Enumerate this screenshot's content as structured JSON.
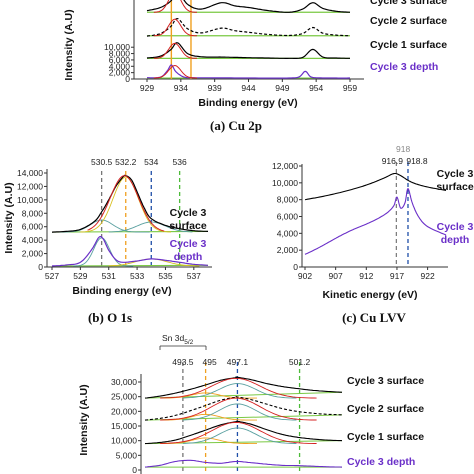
{
  "colors": {
    "surface_line": "#000000",
    "depth_line": "#6a2fc8",
    "fit_red": "#d42020",
    "bg_green": "#7ac943",
    "peak_orange": "#f0a020",
    "peak_blue": "#1f4fa8",
    "peak_green": "#4dbb3a",
    "peak_grey": "#777777",
    "comp_teal": "#5aa0a0",
    "comp_yellow": "#d8c020"
  },
  "chart_data": [
    {
      "panel": "a",
      "type": "line",
      "caption": "(a) Cu 2p",
      "xlabel": "Binding energy (eV)",
      "ylabel": "Intensity (A.U)",
      "xlim": [
        929,
        959
      ],
      "x_ticks": [
        "929",
        "934",
        "939",
        "944",
        "949",
        "954",
        "959"
      ],
      "y_ticks": [
        "0",
        "2,000",
        "4,000",
        "6,000",
        "8,000",
        "10,000"
      ],
      "series": [
        {
          "name": "Cycle 3 surface",
          "x": [
            929,
            931,
            932.5,
            933.5,
            935,
            937,
            940,
            942,
            944,
            947,
            950,
            952,
            953.5,
            955,
            957,
            959
          ],
          "y": [
            21500,
            22500,
            24500,
            27500,
            23500,
            22000,
            24000,
            23000,
            22500,
            21500,
            21000,
            22000,
            24000,
            22200,
            21300,
            21000
          ]
        },
        {
          "name": "Cycle 2 surface",
          "x": [
            929,
            931,
            932.5,
            933.5,
            935,
            937,
            940,
            942,
            944,
            947,
            950,
            952,
            953.5,
            955,
            957,
            959
          ],
          "y": [
            13500,
            14300,
            16500,
            19000,
            15800,
            14500,
            16000,
            15200,
            14700,
            14000,
            13700,
            14300,
            16200,
            14400,
            13800,
            13600
          ]
        },
        {
          "name": "Cycle 1 surface",
          "x": [
            929,
            931,
            932.5,
            933.5,
            935,
            937,
            940,
            942,
            944,
            947,
            950,
            952,
            953.5,
            955,
            957,
            959
          ],
          "y": [
            6600,
            7200,
            9200,
            11400,
            8000,
            7000,
            6900,
            6800,
            6700,
            6600,
            6500,
            6800,
            9300,
            6900,
            6600,
            6500
          ]
        },
        {
          "name": "Cycle 3 depth",
          "x": [
            929,
            931,
            932,
            932.6,
            933.3,
            934.5,
            936,
            940,
            945,
            950,
            951.5,
            952.4,
            953.2,
            954.5,
            957,
            959
          ],
          "y": [
            400,
            600,
            2600,
            4400,
            2200,
            600,
            400,
            350,
            300,
            300,
            700,
            2400,
            700,
            350,
            300,
            300
          ]
        }
      ],
      "vlines": [
        {
          "x": 932.6,
          "color": "orange"
        },
        {
          "x": 935.5,
          "color": "orange"
        }
      ],
      "labels": [
        "Cycle 3 surface",
        "Cycle 2 surface",
        "Cycle 1 surface",
        "Cycle 3 depth"
      ]
    },
    {
      "panel": "b",
      "type": "line",
      "caption": "(b) O 1s",
      "xlabel": "Binding energy (eV)",
      "ylabel": "Intensity (A.U)",
      "xlim": [
        527,
        538
      ],
      "ylim": [
        0,
        14000
      ],
      "x_ticks": [
        "527",
        "529",
        "531",
        "533",
        "535",
        "537"
      ],
      "y_ticks": [
        "0",
        "2,000",
        "4,000",
        "6,000",
        "8,000",
        "10,000",
        "12,000",
        "14,000"
      ],
      "peak_labels": [
        "530.5",
        "532.2",
        "534",
        "536"
      ],
      "peak_positions": [
        530.5,
        532.2,
        534,
        536
      ],
      "series": [
        {
          "name": "Cycle 3 surface",
          "x": [
            527,
            528,
            529,
            530,
            530.5,
            531,
            531.5,
            532,
            532.2,
            532.6,
            533,
            533.5,
            534,
            535,
            536,
            537,
            538
          ],
          "y": [
            5200,
            5300,
            5600,
            6800,
            8200,
            10000,
            12000,
            13400,
            13600,
            13000,
            11200,
            8800,
            7200,
            6200,
            5700,
            5400,
            5300
          ]
        },
        {
          "name": "Cycle 3 depth",
          "x": [
            527,
            528,
            529,
            529.8,
            530.3,
            530.6,
            531,
            531.5,
            532,
            533,
            534,
            535,
            536,
            537,
            538
          ],
          "y": [
            150,
            300,
            700,
            2600,
            4400,
            4200,
            2500,
            1100,
            700,
            900,
            1200,
            1000,
            700,
            400,
            250
          ]
        }
      ],
      "labels": [
        "Cycle 3 surface",
        "Cycle 3 depth"
      ]
    },
    {
      "panel": "c",
      "type": "line",
      "caption": "(c) Cu LVV",
      "xlabel": "Kinetic energy (eV)",
      "xlim": [
        902,
        925
      ],
      "ylim": [
        0,
        12000
      ],
      "x_ticks": [
        "902",
        "907",
        "912",
        "917",
        "922"
      ],
      "y_ticks": [
        "0",
        "2,000",
        "4,000",
        "6,000",
        "8,000",
        "10,000",
        "12,000"
      ],
      "peak_labels": [
        "916.9",
        "918",
        "918.8"
      ],
      "peak_positions": [
        916.9,
        918,
        918.8
      ],
      "series": [
        {
          "name": "Cycle 3 surface",
          "x": [
            902,
            905,
            908,
            911,
            913,
            915,
            916.5,
            917.5,
            918.8,
            920,
            922,
            925
          ],
          "y": [
            8000,
            8400,
            8900,
            9500,
            10000,
            10600,
            11100,
            10900,
            10300,
            9900,
            9500,
            9100
          ]
        },
        {
          "name": "Cycle 3 depth",
          "x": [
            902,
            904,
            906,
            908,
            910,
            912,
            914,
            915.5,
            916.5,
            917,
            917.6,
            918.3,
            918.8,
            919.5,
            920.5,
            922,
            925
          ],
          "y": [
            1500,
            2200,
            3000,
            3800,
            4500,
            5100,
            5800,
            6500,
            7300,
            8300,
            7000,
            7600,
            9300,
            7600,
            6000,
            4800,
            3800
          ]
        }
      ],
      "labels": [
        "Cycle 3 surface",
        "Cycle 3 depth"
      ]
    },
    {
      "panel": "d",
      "type": "line",
      "region_label": "Sn 3d5/2",
      "xlabel": "",
      "ylabel": "Intensity (A.U)",
      "ylim": [
        0,
        30000
      ],
      "y_ticks": [
        "0",
        "5,000",
        "10,000",
        "15,000",
        "20,000",
        "25,000",
        "30,000"
      ],
      "peak_labels": [
        "493.5",
        "495",
        "497.1",
        "501.2"
      ],
      "series": [
        {
          "name": "Cycle 3 surface",
          "x": [
            491,
            492,
            493,
            494,
            495,
            496,
            497,
            497.1,
            498,
            499,
            500,
            501,
            502,
            503,
            504
          ],
          "y": [
            24500,
            25200,
            26200,
            27500,
            29000,
            30600,
            31500,
            31600,
            30800,
            29500,
            28500,
            27800,
            27200,
            26800,
            26500
          ]
        },
        {
          "name": "Cycle 2 surface",
          "x": [
            491,
            492,
            493,
            494,
            495,
            496,
            497,
            497.1,
            498,
            499,
            500,
            501,
            502,
            503,
            504
          ],
          "y": [
            17000,
            17600,
            18600,
            20200,
            22000,
            23800,
            24800,
            24900,
            24000,
            22500,
            21000,
            20000,
            19400,
            19000,
            18800
          ]
        },
        {
          "name": "Cycle 1 surface",
          "x": [
            491,
            492,
            493,
            494,
            495,
            496,
            497,
            497.1,
            498,
            499,
            500,
            501,
            502,
            503,
            504
          ],
          "y": [
            9000,
            9400,
            10200,
            11800,
            13600,
            15400,
            16500,
            16600,
            15600,
            13800,
            12200,
            11200,
            10600,
            10200,
            10000
          ]
        },
        {
          "name": "Cycle 3 depth",
          "x": [
            491,
            492,
            493,
            494,
            495,
            496,
            497,
            498,
            499,
            500,
            501,
            502,
            503,
            504
          ],
          "y": [
            1000,
            1600,
            2900,
            3300,
            2600,
            2300,
            2900,
            2500,
            2000,
            1600,
            1500,
            1300,
            1100,
            1000
          ]
        }
      ],
      "labels": [
        "Cycle 3 surface",
        "Cycle 2 surface",
        "Cycle 1 surface",
        "Cycle 3 depth"
      ]
    }
  ]
}
